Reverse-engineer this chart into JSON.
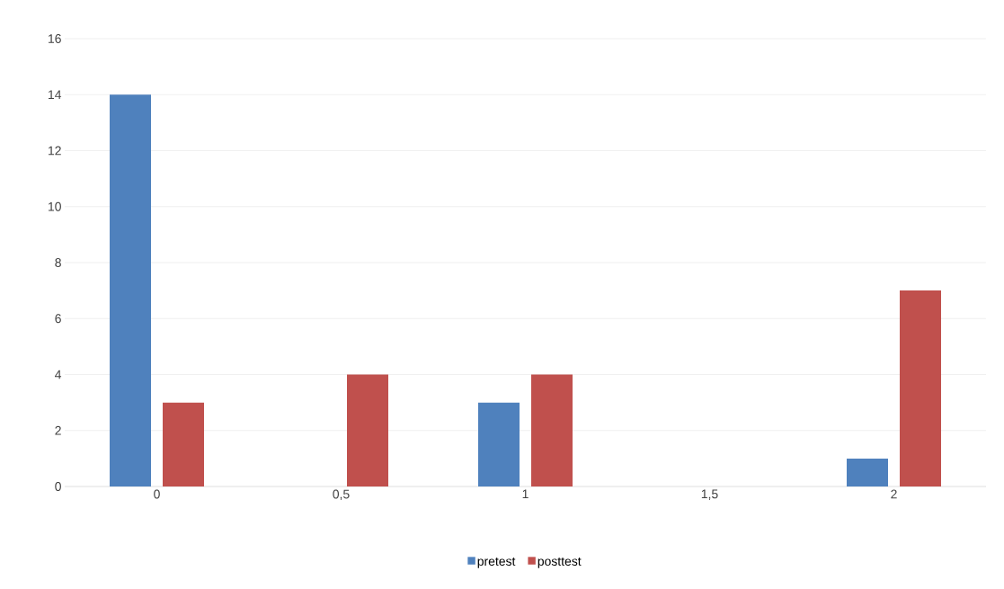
{
  "chart_data": {
    "type": "bar",
    "categories": [
      "0",
      "0,5",
      "1",
      "1,5",
      "2"
    ],
    "series": [
      {
        "name": "pretest",
        "color": "#4f81bd",
        "values": [
          14,
          0,
          3,
          0,
          1
        ]
      },
      {
        "name": "posttest",
        "color": "#c0504d",
        "values": [
          3,
          4,
          4,
          0,
          7
        ]
      }
    ],
    "ylim": [
      0,
      16
    ],
    "yticks": [
      0,
      2,
      4,
      6,
      8,
      10,
      12,
      14,
      16
    ],
    "grid": "y",
    "legend": "bottom"
  }
}
